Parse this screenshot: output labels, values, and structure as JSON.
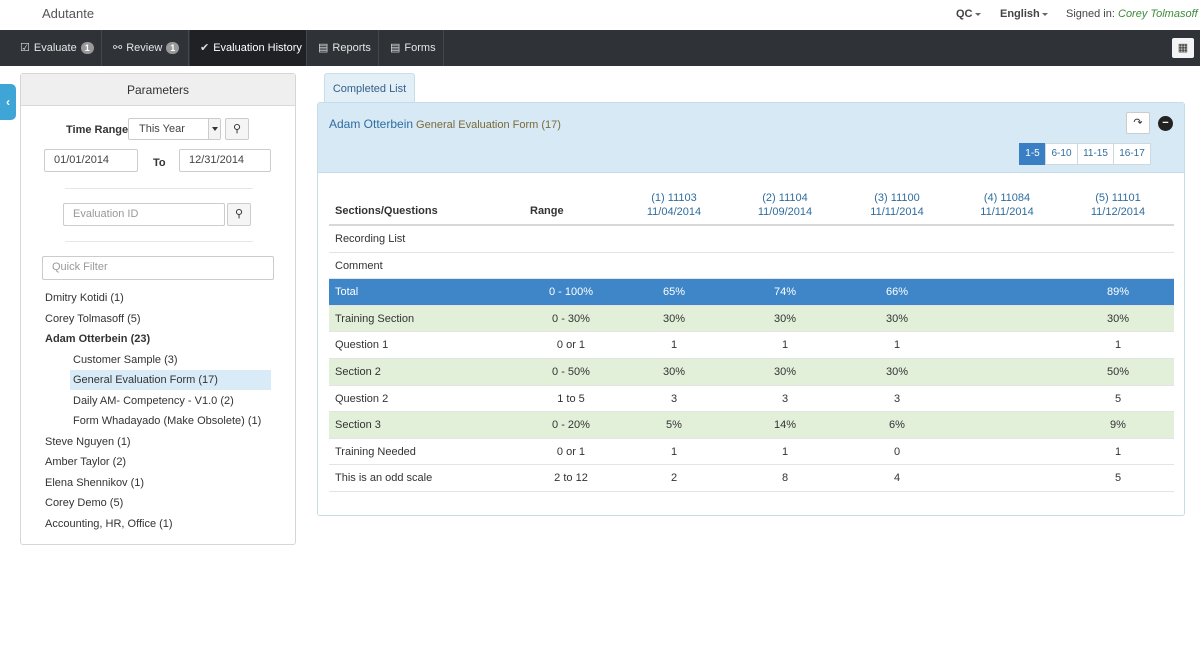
{
  "app": {
    "brand": "Adutante"
  },
  "topright": {
    "qc": "QC",
    "language": "English",
    "signed_in_label": "Signed in:",
    "user": "Corey Tolmasoff"
  },
  "nav": {
    "items": [
      {
        "label": "Evaluate",
        "badge": "1",
        "icon": "clipboard-check-icon"
      },
      {
        "label": "Review",
        "badge": "1",
        "icon": "sitemap-icon"
      },
      {
        "label": "Evaluation History",
        "badge": "",
        "icon": "check-icon"
      },
      {
        "label": "Reports",
        "badge": "",
        "icon": "bar-chart-icon"
      },
      {
        "label": "Forms",
        "badge": "",
        "icon": "comments-icon"
      }
    ],
    "active_index": 2
  },
  "params": {
    "title": "Parameters",
    "time_range_label": "Time Range",
    "time_range_value": "This Year",
    "date_from": "01/01/2014",
    "to_label": "To",
    "date_to": "12/31/2014",
    "evaluation_id_placeholder": "Evaluation ID",
    "quick_filter_placeholder": "Quick Filter",
    "tree": [
      {
        "label": "Dmitry Kotidi (1)",
        "level": 0,
        "bold": false,
        "selected": false
      },
      {
        "label": "Corey Tolmasoff (5)",
        "level": 0,
        "bold": false,
        "selected": false
      },
      {
        "label": "Adam Otterbein (23)",
        "level": 0,
        "bold": true,
        "selected": false
      },
      {
        "label": "Customer Sample (3)",
        "level": 1,
        "bold": false,
        "selected": false
      },
      {
        "label": "General Evaluation Form (17)",
        "level": 1,
        "bold": false,
        "selected": true
      },
      {
        "label": "Daily AM- Competency - V1.0 (2)",
        "level": 1,
        "bold": false,
        "selected": false
      },
      {
        "label": "Form Whadayado (Make Obsolete) (1)",
        "level": 1,
        "bold": false,
        "selected": false
      },
      {
        "label": "Steve Nguyen (1)",
        "level": 0,
        "bold": false,
        "selected": false
      },
      {
        "label": "Amber Taylor (2)",
        "level": 0,
        "bold": false,
        "selected": false
      },
      {
        "label": "Elena Shennikov (1)",
        "level": 0,
        "bold": false,
        "selected": false
      },
      {
        "label": "Corey Demo (5)",
        "level": 0,
        "bold": false,
        "selected": false
      },
      {
        "label": "Accounting, HR, Office (1)",
        "level": 0,
        "bold": false,
        "selected": false
      }
    ]
  },
  "main": {
    "tab_label": "Completed List",
    "title_name": "Adam Otterbein",
    "title_form": "General Evaluation Form (17)",
    "pager": [
      "1-5",
      "6-10",
      "11-15",
      "16-17"
    ],
    "pager_active": 0,
    "table": {
      "col_sections": "Sections/Questions",
      "col_range": "Range",
      "evaluations": [
        {
          "id": "(1) 11103",
          "date": "11/04/2014"
        },
        {
          "id": "(2) 11104",
          "date": "11/09/2014"
        },
        {
          "id": "(3) 11100",
          "date": "11/11/2014"
        },
        {
          "id": "(4) 11084",
          "date": "11/11/2014"
        },
        {
          "id": "(5) 11101",
          "date": "11/12/2014"
        }
      ],
      "rows": [
        {
          "name": "Recording List",
          "range": "",
          "values": [
            "",
            "",
            "",
            "",
            ""
          ],
          "style": "plain"
        },
        {
          "name": "Comment",
          "range": "",
          "values": [
            "",
            "",
            "",
            "",
            ""
          ],
          "style": "plain"
        },
        {
          "name": "Total",
          "range": "0 - 100%",
          "values": [
            "65%",
            "74%",
            "66%",
            "",
            "89%"
          ],
          "style": "total"
        },
        {
          "name": "Training Section",
          "range": "0 - 30%",
          "values": [
            "30%",
            "30%",
            "30%",
            "",
            "30%"
          ],
          "style": "green"
        },
        {
          "name": "Question 1",
          "range": "0 or 1",
          "values": [
            "1",
            "1",
            "1",
            "",
            "1"
          ],
          "style": "plain"
        },
        {
          "name": "Section 2",
          "range": "0 - 50%",
          "values": [
            "30%",
            "30%",
            "30%",
            "",
            "50%"
          ],
          "style": "green"
        },
        {
          "name": "Question 2",
          "range": "1 to 5",
          "values": [
            "3",
            "3",
            "3",
            "",
            "5"
          ],
          "style": "plain"
        },
        {
          "name": "Section 3",
          "range": "0 - 20%",
          "values": [
            "5%",
            "14%",
            "6%",
            "",
            "9%"
          ],
          "style": "green"
        },
        {
          "name": "Training Needed",
          "range": "0 or 1",
          "values": [
            "1",
            "1",
            "0",
            "",
            "1"
          ],
          "style": "plain"
        },
        {
          "name": "This is an odd scale",
          "range": "2 to 12",
          "values": [
            "2",
            "8",
            "4",
            "",
            "5"
          ],
          "style": "plain"
        }
      ]
    }
  }
}
